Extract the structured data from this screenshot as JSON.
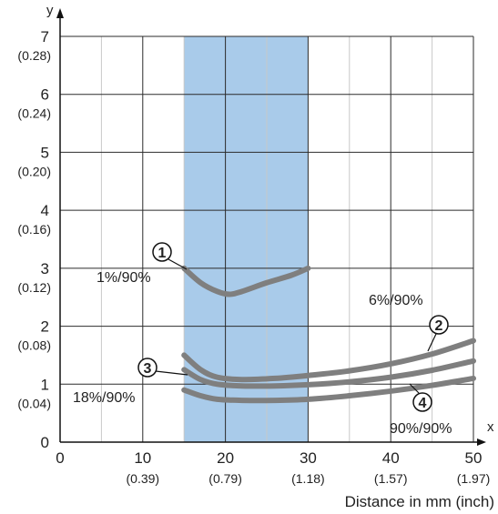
{
  "chart_data": {
    "type": "line",
    "x_axis": {
      "letter": "x",
      "label": "Distance in mm (inch)",
      "range": [
        0,
        50
      ],
      "ticks": [
        {
          "value": 0,
          "label": "0",
          "sub": ""
        },
        {
          "value": 10,
          "label": "10",
          "sub": "(0.39)"
        },
        {
          "value": 20,
          "label": "20",
          "sub": "(0.79)"
        },
        {
          "value": 30,
          "label": "30",
          "sub": "(1.18)"
        },
        {
          "value": 40,
          "label": "40",
          "sub": "(1.57)"
        },
        {
          "value": 50,
          "label": "50",
          "sub": "(1.97)"
        }
      ],
      "minor_gridlines": [
        5,
        15,
        25,
        35,
        45
      ]
    },
    "y_axis": {
      "letter": "y",
      "range": [
        0,
        7
      ],
      "ticks": [
        {
          "value": 0,
          "label": "0",
          "sub": ""
        },
        {
          "value": 1,
          "label": "1",
          "sub": "(0.04)"
        },
        {
          "value": 2,
          "label": "2",
          "sub": "(0.08)"
        },
        {
          "value": 3,
          "label": "3",
          "sub": "(0.12)"
        },
        {
          "value": 4,
          "label": "4",
          "sub": "(0.16)"
        },
        {
          "value": 5,
          "label": "5",
          "sub": "(0.20)"
        },
        {
          "value": 6,
          "label": "6",
          "sub": "(0.24)"
        },
        {
          "value": 7,
          "label": "7",
          "sub": "(0.28)"
        }
      ]
    },
    "grid": true,
    "highlight_band": {
      "x_from": 15,
      "x_to": 30,
      "color": "#a9cbea"
    },
    "series_color": "#7f7f7f",
    "series": [
      {
        "marker": "1",
        "label": "1%/90%",
        "points": [
          [
            15,
            3.0
          ],
          [
            17,
            2.75
          ],
          [
            19,
            2.6
          ],
          [
            20.5,
            2.55
          ],
          [
            22,
            2.6
          ],
          [
            25,
            2.75
          ],
          [
            28,
            2.88
          ],
          [
            30,
            3.0
          ]
        ]
      },
      {
        "marker": "2",
        "label": "6%/90%",
        "points": [
          [
            15,
            1.5
          ],
          [
            17,
            1.25
          ],
          [
            19,
            1.12
          ],
          [
            22,
            1.08
          ],
          [
            26,
            1.1
          ],
          [
            30,
            1.15
          ],
          [
            35,
            1.23
          ],
          [
            40,
            1.35
          ],
          [
            45,
            1.52
          ],
          [
            50,
            1.75
          ]
        ]
      },
      {
        "marker": "3",
        "label": "18%/90%",
        "points": [
          [
            15,
            1.25
          ],
          [
            17,
            1.08
          ],
          [
            19,
            1.0
          ],
          [
            22,
            0.97
          ],
          [
            26,
            0.97
          ],
          [
            30,
            0.99
          ],
          [
            35,
            1.04
          ],
          [
            40,
            1.12
          ],
          [
            45,
            1.24
          ],
          [
            50,
            1.4
          ]
        ]
      },
      {
        "marker": "4",
        "label": "90%/90%",
        "points": [
          [
            15,
            0.9
          ],
          [
            17,
            0.8
          ],
          [
            19,
            0.74
          ],
          [
            22,
            0.72
          ],
          [
            26,
            0.72
          ],
          [
            30,
            0.74
          ],
          [
            35,
            0.8
          ],
          [
            40,
            0.88
          ],
          [
            45,
            0.98
          ],
          [
            50,
            1.1
          ]
        ]
      }
    ]
  }
}
